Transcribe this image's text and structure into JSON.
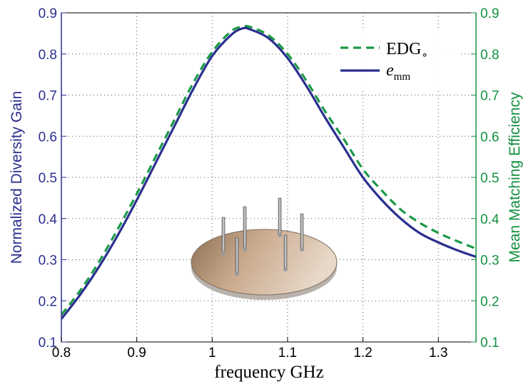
{
  "chart_data": {
    "type": "line",
    "xlabel": "frequency GHz",
    "ylabel_left": "Normalized Diversity Gain",
    "ylabel_right": "Mean Matching Efficiency",
    "xlim": [
      0.8,
      1.35
    ],
    "ylim": [
      0.1,
      0.9
    ],
    "ylim_right": [
      0.1,
      0.9
    ],
    "x_ticks": [
      0.8,
      0.9,
      1,
      1.1,
      1.2,
      1.3
    ],
    "x_tick_labels": [
      "0.8",
      "0.9",
      "1",
      "1.1",
      "1.2",
      "1.3"
    ],
    "y_ticks": [
      0.1,
      0.2,
      0.3,
      0.4,
      0.5,
      0.6,
      0.7,
      0.8,
      0.9
    ],
    "y_tick_labels": [
      "0.1",
      "0.2",
      "0.3",
      "0.4",
      "0.5",
      "0.6",
      "0.7",
      "0.8",
      "0.9"
    ],
    "grid": true,
    "grid_style": "dotted",
    "legend_position": "top-right",
    "colors": {
      "left_axis": "#2b2f8f",
      "right_axis": "#139040",
      "series_emm": "#2b2f8f",
      "series_edg": "#1a9a48",
      "grid": "#555555"
    },
    "x": [
      0.8,
      0.825,
      0.85,
      0.875,
      0.9,
      0.925,
      0.95,
      0.975,
      1.0,
      1.025,
      1.04,
      1.05,
      1.075,
      1.1,
      1.125,
      1.15,
      1.175,
      1.2,
      1.225,
      1.25,
      1.275,
      1.3,
      1.325,
      1.35
    ],
    "series": [
      {
        "name": "EDG",
        "name_sub": "∘",
        "style": "dashed",
        "axis": "right",
        "values": [
          0.166,
          0.225,
          0.295,
          0.375,
          0.46,
          0.55,
          0.64,
          0.73,
          0.805,
          0.855,
          0.866,
          0.866,
          0.845,
          0.8,
          0.735,
          0.66,
          0.592,
          0.52,
          0.468,
          0.422,
          0.39,
          0.365,
          0.345,
          0.327
        ]
      },
      {
        "name": "e",
        "name_sub": "mm",
        "style": "solid",
        "axis": "left",
        "values": [
          0.156,
          0.215,
          0.283,
          0.36,
          0.445,
          0.535,
          0.625,
          0.715,
          0.795,
          0.846,
          0.862,
          0.86,
          0.838,
          0.79,
          0.722,
          0.645,
          0.572,
          0.5,
          0.445,
          0.4,
          0.365,
          0.342,
          0.323,
          0.307
        ]
      }
    ]
  }
}
